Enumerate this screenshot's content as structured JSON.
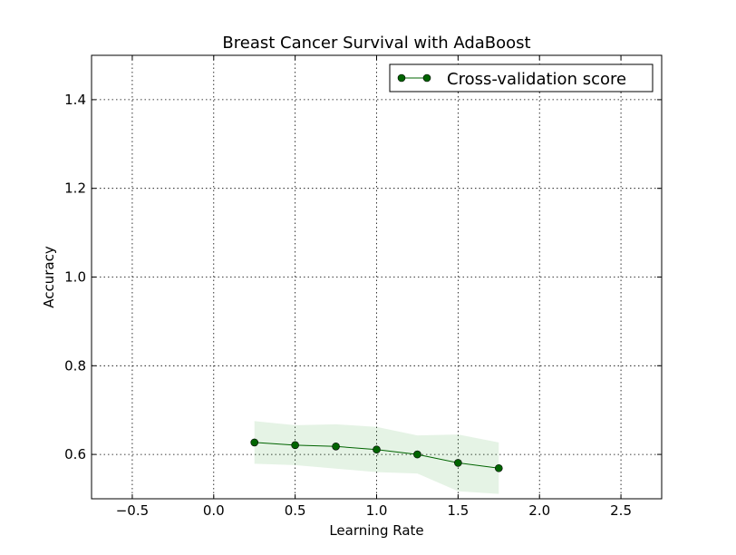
{
  "chart_data": {
    "type": "line",
    "title": "Breast Cancer Survival with AdaBoost",
    "xlabel": "Learning Rate",
    "ylabel": "Accuracy",
    "xlim": [
      -0.75,
      2.75
    ],
    "ylim": [
      0.5,
      1.5
    ],
    "grid": true,
    "legend_position": "top-right",
    "x_ticks": [
      -0.5,
      0.0,
      0.5,
      1.0,
      1.5,
      2.0,
      2.5
    ],
    "x_tick_labels": [
      "−0.5",
      "0.0",
      "0.5",
      "1.0",
      "1.5",
      "2.0",
      "2.5"
    ],
    "y_ticks": [
      0.6,
      0.8,
      1.0,
      1.2,
      1.4
    ],
    "y_tick_labels": [
      "0.6",
      "0.8",
      "1.0",
      "1.2",
      "1.4"
    ],
    "series": [
      {
        "name": "Cross-validation score",
        "color": "#006400",
        "x": [
          0.25,
          0.5,
          0.75,
          1.0,
          1.25,
          1.5,
          1.75
        ],
        "y": [
          0.627,
          0.621,
          0.618,
          0.611,
          0.6,
          0.581,
          0.569
        ],
        "band_color": "#2ca02c",
        "band_upper": [
          0.675,
          0.666,
          0.668,
          0.662,
          0.643,
          0.645,
          0.627
        ],
        "band_lower": [
          0.579,
          0.576,
          0.568,
          0.56,
          0.557,
          0.517,
          0.511
        ]
      }
    ]
  }
}
